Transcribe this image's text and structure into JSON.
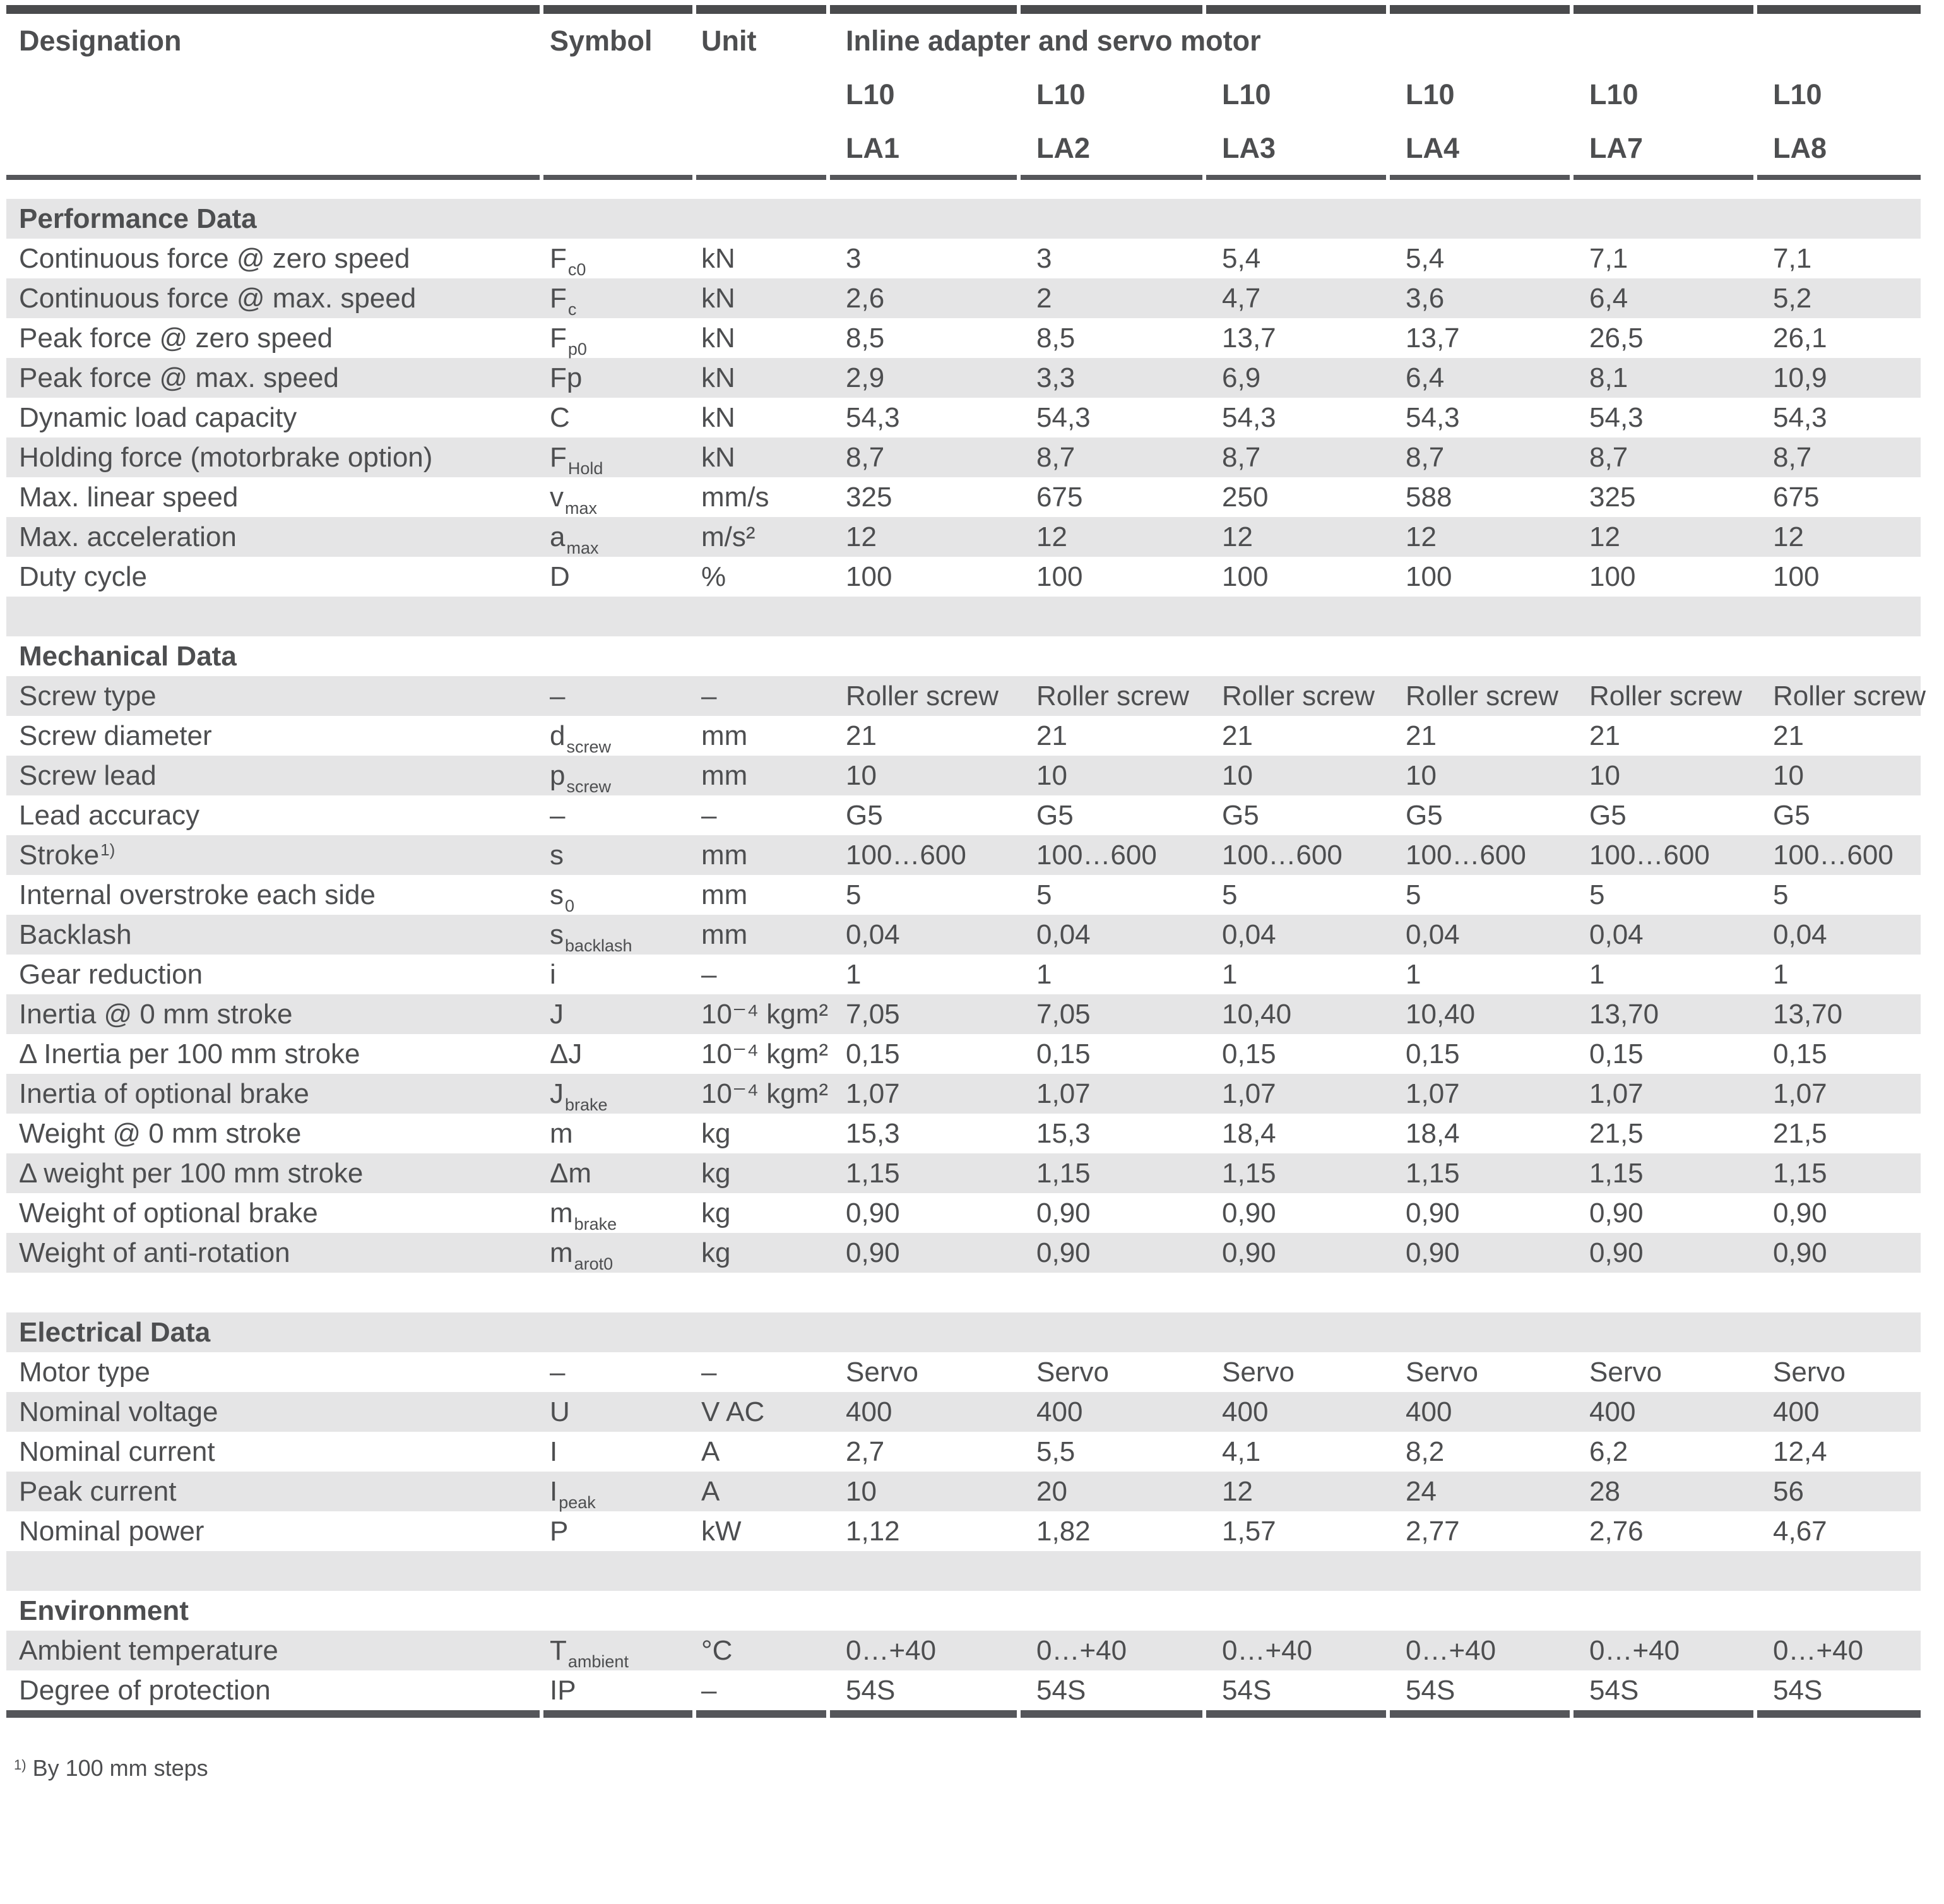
{
  "header": {
    "designation": "Designation",
    "symbol": "Symbol",
    "unit": "Unit",
    "group_title": "Inline adapter and servo motor",
    "products": [
      {
        "series": "L10",
        "model": "LA1"
      },
      {
        "series": "L10",
        "model": "LA2"
      },
      {
        "series": "L10",
        "model": "LA3"
      },
      {
        "series": "L10",
        "model": "LA4"
      },
      {
        "series": "L10",
        "model": "LA7"
      },
      {
        "series": "L10",
        "model": "LA8"
      }
    ]
  },
  "rows": [
    {
      "type": "section",
      "label": "Performance Data"
    },
    {
      "type": "data",
      "designation": "Continuous force @ zero speed",
      "symbol_base": "F",
      "symbol_sub": "c0",
      "unit": "kN",
      "values": [
        "3",
        "3",
        "5,4",
        "5,4",
        "7,1",
        "7,1"
      ]
    },
    {
      "type": "data",
      "designation": "Continuous force @ max. speed",
      "symbol_base": "F",
      "symbol_sub": "c",
      "unit": "kN",
      "values": [
        "2,6",
        "2",
        "4,7",
        "3,6",
        "6,4",
        "5,2"
      ]
    },
    {
      "type": "data",
      "designation": "Peak force @ zero speed",
      "symbol_base": "F",
      "symbol_sub": "p0",
      "unit": "kN",
      "values": [
        "8,5",
        "8,5",
        "13,7",
        "13,7",
        "26,5",
        "26,1"
      ]
    },
    {
      "type": "data",
      "designation": "Peak force @ max. speed",
      "symbol_base": "Fp",
      "symbol_sub": "",
      "unit": "kN",
      "values": [
        "2,9",
        "3,3",
        "6,9",
        "6,4",
        "8,1",
        "10,9"
      ]
    },
    {
      "type": "data",
      "designation": "Dynamic load capacity",
      "symbol_base": "C",
      "symbol_sub": "",
      "unit": "kN",
      "values": [
        "54,3",
        "54,3",
        "54,3",
        "54,3",
        "54,3",
        "54,3"
      ]
    },
    {
      "type": "data",
      "designation": "Holding force (motorbrake option)",
      "symbol_base": "F",
      "symbol_sub": "Hold",
      "unit": "kN",
      "values": [
        "8,7",
        "8,7",
        "8,7",
        "8,7",
        "8,7",
        "8,7"
      ]
    },
    {
      "type": "data",
      "designation": "Max. linear speed",
      "symbol_base": "v",
      "symbol_sub": "max",
      "unit": "mm/s",
      "values": [
        "325",
        "675",
        "250",
        "588",
        "325",
        "675"
      ]
    },
    {
      "type": "data",
      "designation": "Max. acceleration",
      "symbol_base": "a",
      "symbol_sub": "max",
      "unit": "m/s²",
      "values": [
        "12",
        "12",
        "12",
        "12",
        "12",
        "12"
      ]
    },
    {
      "type": "data",
      "designation": "Duty cycle",
      "symbol_base": "D",
      "symbol_sub": "",
      "unit": "%",
      "values": [
        "100",
        "100",
        "100",
        "100",
        "100",
        "100"
      ]
    },
    {
      "type": "spacer"
    },
    {
      "type": "section",
      "label": "Mechanical Data"
    },
    {
      "type": "data",
      "designation": "Screw type",
      "symbol_base": "–",
      "symbol_sub": "",
      "unit": "–",
      "values": [
        "Roller screw",
        "Roller screw",
        "Roller screw",
        "Roller screw",
        "Roller screw",
        "Roller screw"
      ]
    },
    {
      "type": "data",
      "designation": "Screw diameter",
      "symbol_base": "d",
      "symbol_sub": "screw",
      "unit": "mm",
      "values": [
        "21",
        "21",
        "21",
        "21",
        "21",
        "21"
      ]
    },
    {
      "type": "data",
      "designation": "Screw lead",
      "symbol_base": "p",
      "symbol_sub": "screw",
      "unit": "mm",
      "values": [
        "10",
        "10",
        "10",
        "10",
        "10",
        "10"
      ]
    },
    {
      "type": "data",
      "designation": "Lead accuracy",
      "symbol_base": "–",
      "symbol_sub": "",
      "unit": "–",
      "values": [
        "G5",
        "G5",
        "G5",
        "G5",
        "G5",
        "G5"
      ]
    },
    {
      "type": "data",
      "designation": "Stroke",
      "designation_sup": "1)",
      "symbol_base": "s",
      "symbol_sub": "",
      "unit": "mm",
      "values": [
        "100…600",
        "100…600",
        "100…600",
        "100…600",
        "100…600",
        "100…600"
      ]
    },
    {
      "type": "data",
      "designation": "Internal overstroke each side",
      "symbol_base": "s",
      "symbol_sub": "0",
      "unit": "mm",
      "values": [
        "5",
        "5",
        "5",
        "5",
        "5",
        "5"
      ]
    },
    {
      "type": "data",
      "designation": "Backlash",
      "symbol_base": "s",
      "symbol_sub": "backlash",
      "unit": "mm",
      "values": [
        "0,04",
        "0,04",
        "0,04",
        "0,04",
        "0,04",
        "0,04"
      ]
    },
    {
      "type": "data",
      "designation": "Gear reduction",
      "symbol_base": "i",
      "symbol_sub": "",
      "unit": "–",
      "values": [
        "1",
        "1",
        "1",
        "1",
        "1",
        "1"
      ]
    },
    {
      "type": "data",
      "designation": "Inertia @ 0 mm stroke",
      "symbol_base": "J",
      "symbol_sub": "",
      "unit": "10⁻⁴ kgm²",
      "values": [
        "7,05",
        "7,05",
        "10,40",
        "10,40",
        "13,70",
        "13,70"
      ]
    },
    {
      "type": "data",
      "designation": "Δ Inertia per 100 mm stroke",
      "symbol_base": "ΔJ",
      "symbol_sub": "",
      "unit": "10⁻⁴ kgm²",
      "values": [
        "0,15",
        "0,15",
        "0,15",
        "0,15",
        "0,15",
        "0,15"
      ]
    },
    {
      "type": "data",
      "designation": "Inertia of optional brake",
      "symbol_base": "J",
      "symbol_sub": "brake",
      "unit": "10⁻⁴ kgm²",
      "values": [
        "1,07",
        "1,07",
        "1,07",
        "1,07",
        "1,07",
        "1,07"
      ]
    },
    {
      "type": "data",
      "designation": "Weight @ 0 mm stroke",
      "symbol_base": "m",
      "symbol_sub": "",
      "unit": "kg",
      "values": [
        "15,3",
        "15,3",
        "18,4",
        "18,4",
        "21,5",
        "21,5"
      ]
    },
    {
      "type": "data",
      "designation": "Δ weight per 100 mm stroke",
      "symbol_base": "Δm",
      "symbol_sub": "",
      "unit": "kg",
      "values": [
        "1,15",
        "1,15",
        "1,15",
        "1,15",
        "1,15",
        "1,15"
      ]
    },
    {
      "type": "data",
      "designation": "Weight of optional brake",
      "symbol_base": "m",
      "symbol_sub": "brake",
      "unit": "kg",
      "values": [
        "0,90",
        "0,90",
        "0,90",
        "0,90",
        "0,90",
        "0,90"
      ]
    },
    {
      "type": "data",
      "designation": "Weight of anti-rotation",
      "symbol_base": "m",
      "symbol_sub": "arot0",
      "unit": "kg",
      "values": [
        "0,90",
        "0,90",
        "0,90",
        "0,90",
        "0,90",
        "0,90"
      ]
    },
    {
      "type": "spacer"
    },
    {
      "type": "section",
      "label": "Electrical Data"
    },
    {
      "type": "data",
      "designation": "Motor type",
      "symbol_base": "–",
      "symbol_sub": "",
      "unit": "–",
      "values": [
        "Servo",
        "Servo",
        "Servo",
        "Servo",
        "Servo",
        "Servo"
      ]
    },
    {
      "type": "data",
      "designation": "Nominal voltage",
      "symbol_base": "U",
      "symbol_sub": "",
      "unit": "V AC",
      "values": [
        "400",
        "400",
        "400",
        "400",
        "400",
        "400"
      ]
    },
    {
      "type": "data",
      "designation": "Nominal current",
      "symbol_base": "I",
      "symbol_sub": "",
      "unit": "A",
      "values": [
        "2,7",
        "5,5",
        "4,1",
        "8,2",
        "6,2",
        "12,4"
      ]
    },
    {
      "type": "data",
      "designation": "Peak current",
      "symbol_base": "I",
      "symbol_sub": "peak",
      "unit": "A",
      "values": [
        "10",
        "20",
        "12",
        "24",
        "28",
        "56"
      ]
    },
    {
      "type": "data",
      "designation": "Nominal power",
      "symbol_base": "P",
      "symbol_sub": "",
      "unit": "kW",
      "values": [
        "1,12",
        "1,82",
        "1,57",
        "2,77",
        "2,76",
        "4,67"
      ]
    },
    {
      "type": "spacer"
    },
    {
      "type": "section",
      "label": "Environment"
    },
    {
      "type": "data",
      "designation": "Ambient temperature",
      "symbol_base": "T",
      "symbol_sub": "ambient",
      "unit": "°C",
      "values": [
        "0…+40",
        "0…+40",
        "0…+40",
        "0…+40",
        "0…+40",
        "0…+40"
      ]
    },
    {
      "type": "data",
      "designation": "Degree of protection",
      "symbol_base": "IP",
      "symbol_sub": "",
      "unit": "–",
      "values": [
        "54S",
        "54S",
        "54S",
        "54S",
        "54S",
        "54S"
      ]
    }
  ],
  "footnote": {
    "marker": "1)",
    "text": "By 100 mm steps"
  },
  "colors": {
    "stripe": "#e5e5e6",
    "text": "#4d4e50",
    "border_dark": "#4a4b4d",
    "rule": "#55565a"
  }
}
